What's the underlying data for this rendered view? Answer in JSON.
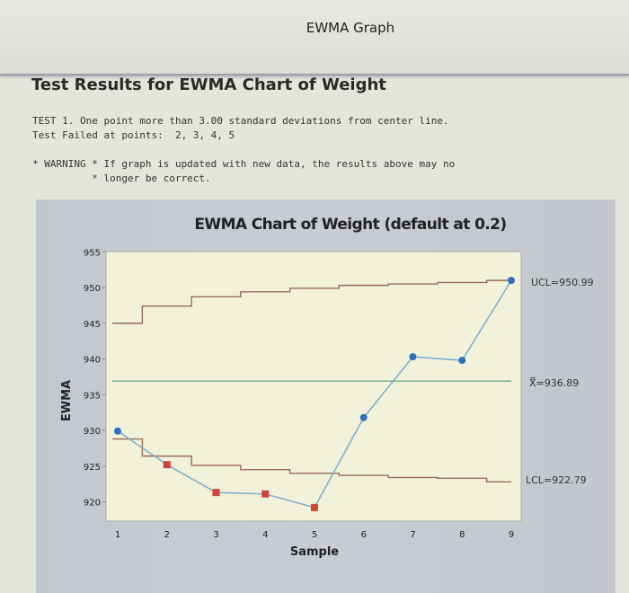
{
  "window": {
    "title": "EWMA Graph"
  },
  "results": {
    "heading": "Test Results for EWMA Chart of Weight",
    "test_line": "TEST 1. One point more than 3.00 standard deviations from center line.",
    "failed_line": "Test Failed at points:  2, 3, 4, 5",
    "warning_line1": "* WARNING * If graph is updated with new data, the results above may no",
    "warning_line2": "          * longer be correct."
  },
  "colors": {
    "ewma_line": "#7fb0cf",
    "in_control_point": "#2f6fc0",
    "out_of_control_point": "#d0453a",
    "control_limit": "#9a6a55",
    "center_line": "#7aa883",
    "plot_bg": "#f2f1d9"
  },
  "chart_data": {
    "type": "line",
    "title": "EWMA Chart of Weight (default at 0.2)",
    "xlabel": "Sample",
    "ylabel": "EWMA",
    "x": [
      1,
      2,
      3,
      4,
      5,
      6,
      7,
      8,
      9
    ],
    "x_ticks": [
      "1",
      "2",
      "3",
      "4",
      "5",
      "6",
      "7",
      "8",
      "9"
    ],
    "y_ticks": [
      "920",
      "925",
      "930",
      "935",
      "940",
      "945",
      "950",
      "955"
    ],
    "ylim": [
      916,
      955
    ],
    "grid": false,
    "series": [
      {
        "name": "EWMA",
        "values": [
          929.9,
          925.2,
          921.3,
          921.1,
          919.2,
          931.8,
          940.3,
          939.8,
          950.99
        ]
      },
      {
        "name": "UCL",
        "step": true,
        "values": [
          945.0,
          947.4,
          948.7,
          949.4,
          949.9,
          950.3,
          950.5,
          950.7,
          950.99
        ]
      },
      {
        "name": "LCL",
        "step": true,
        "values": [
          928.8,
          926.4,
          925.1,
          924.5,
          924.0,
          923.7,
          923.4,
          923.3,
          922.79
        ]
      },
      {
        "name": "Center",
        "values": [
          936.89,
          936.89,
          936.89,
          936.89,
          936.89,
          936.89,
          936.89,
          936.89,
          936.89
        ]
      }
    ],
    "out_of_control_points": [
      2,
      3,
      4,
      5
    ],
    "annotations": {
      "ucl": "UCL=950.99",
      "center": "X̿=936.89",
      "lcl": "LCL=922.79"
    }
  }
}
